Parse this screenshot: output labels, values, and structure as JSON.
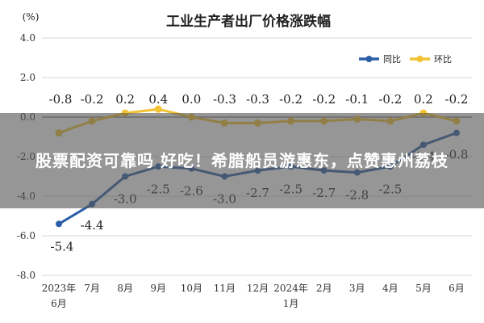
{
  "chart_data": {
    "type": "line",
    "title": "工业生产者出厂价格涨跌幅",
    "ylabel": "(%)",
    "ylim": [
      -8.0,
      4.0
    ],
    "yticks": [
      "4.0",
      "2.0",
      "0.0",
      "-2.0",
      "-4.0",
      "-6.0",
      "-8.0"
    ],
    "ytick_values": [
      4,
      2,
      0,
      -2,
      -4,
      -6,
      -8
    ],
    "grid": true,
    "legend_position": "top-right",
    "categories": [
      [
        "2023年",
        "6月"
      ],
      [
        "7月"
      ],
      [
        "8月"
      ],
      [
        "9月"
      ],
      [
        "10月"
      ],
      [
        "11月"
      ],
      [
        "12月"
      ],
      [
        "2024年",
        "1月"
      ],
      [
        "2月"
      ],
      [
        "3月"
      ],
      [
        "4月"
      ],
      [
        "5月"
      ],
      [
        "6月"
      ]
    ],
    "series": [
      {
        "name": "同比",
        "color": "#2a5fa8",
        "values": [
          -5.4,
          -4.4,
          -3.0,
          -2.5,
          -2.6,
          -3.0,
          -2.7,
          -2.5,
          -2.7,
          -2.8,
          -2.5,
          -1.4,
          -0.8
        ],
        "labels": [
          "-5.4",
          "-4.4",
          "-3.0",
          "-2.5",
          "-2.6",
          "-3.0",
          "-2.7",
          "-2.5",
          "-2.7",
          "-2.8",
          "-2.5",
          "-1.4",
          "-0.8"
        ]
      },
      {
        "name": "环比",
        "color": "#f2c230",
        "values": [
          -0.8,
          -0.2,
          0.2,
          0.4,
          0.0,
          -0.3,
          -0.3,
          -0.2,
          -0.2,
          -0.1,
          -0.2,
          0.2,
          -0.2
        ],
        "labels": [
          "-0.8",
          "-0.2",
          "0.2",
          "0.4",
          "0.0",
          "-0.3",
          "-0.3",
          "-0.2",
          "-0.2",
          "-0.1",
          "-0.2",
          "0.2",
          "-0.2"
        ]
      }
    ]
  },
  "overlay": {
    "text": "股票配资可靠吗 好吃！希腊船员游惠东，点赞惠州荔枝"
  }
}
